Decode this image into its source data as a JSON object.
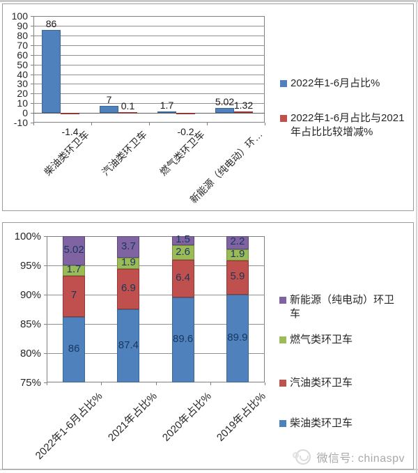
{
  "footer": {
    "wechat_label": "微信号: chinaspv"
  },
  "chart_data": [
    {
      "type": "bar",
      "title": "",
      "categories": [
        "柴油类环卫车",
        "汽油类环卫车",
        "燃气类环卫车",
        "新能源（纯电动）环…"
      ],
      "series": [
        {
          "name": "2022年1-6月占比%",
          "color": "#4f81bd",
          "border": "#3a6796",
          "values": [
            86,
            7,
            1.7,
            5.02
          ],
          "labels": [
            "86",
            "7",
            "1.7",
            "5.02"
          ]
        },
        {
          "name": "2022年1-6月占比与2021年占比比较增减%",
          "color": "#c0504d",
          "border": "#953735",
          "values": [
            -1.4,
            0.1,
            -0.2,
            1.32
          ],
          "labels": [
            "-1.4",
            "0.1",
            "-0.2",
            "1.32"
          ]
        }
      ],
      "ylim": [
        -10,
        100
      ],
      "ytick_step": 10,
      "yticks": [
        "100",
        "90",
        "80",
        "70",
        "60",
        "50",
        "40",
        "30",
        "20",
        "10",
        "0",
        "-10"
      ],
      "legend_position": "right",
      "grid": true
    },
    {
      "type": "stacked-bar-100",
      "title": "",
      "categories": [
        "2022年1-6月占比%",
        "2021年占比%",
        "2020年占比%",
        "2019年占比%"
      ],
      "series": [
        {
          "name": "柴油类环卫车",
          "color": "#4f81bd",
          "border": "#3a6796",
          "values": [
            86,
            87.4,
            89.6,
            89.9
          ],
          "labels": [
            "86",
            "87.4",
            "89.6",
            "89.9"
          ]
        },
        {
          "name": "汽油类环卫车",
          "color": "#c0504d",
          "border": "#953735",
          "values": [
            7,
            6.9,
            6.4,
            5.9
          ],
          "labels": [
            "7",
            "6.9",
            "6.4",
            "5.9"
          ]
        },
        {
          "name": "燃气类环卫车",
          "color": "#9bbb59",
          "border": "#76933c",
          "values": [
            1.7,
            1.9,
            2.6,
            1.9
          ],
          "labels": [
            "1.7",
            "1.9",
            "2.6",
            "1.9"
          ]
        },
        {
          "name": "新能源（纯电动）环卫车",
          "color": "#8064a2",
          "border": "#5f497a",
          "values": [
            5.02,
            3.7,
            1.5,
            2.2
          ],
          "labels": [
            "5.02",
            "3.7",
            "1.5",
            "2.2"
          ]
        }
      ],
      "ylim": [
        75,
        100
      ],
      "yticks": [
        "100%",
        "95%",
        "90%",
        "85%",
        "80%",
        "75%"
      ],
      "legend_order": [
        3,
        2,
        1,
        0
      ],
      "legend_position": "right",
      "grid": true
    }
  ]
}
